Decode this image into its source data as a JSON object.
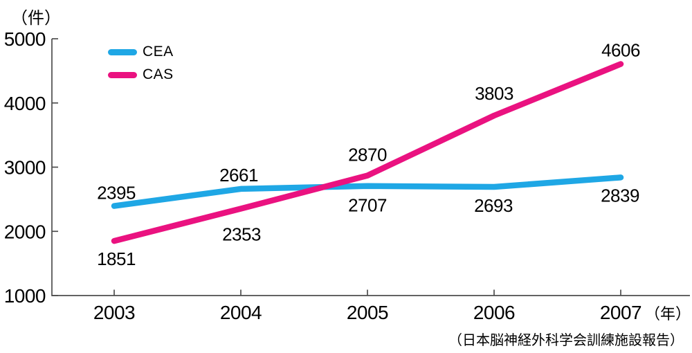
{
  "chart_data": {
    "type": "line",
    "title": "",
    "y_unit_label": "（件）",
    "x_unit_label": "（年）",
    "source_note": "（日本脳神経外科学会訓練施設報告）",
    "categories": [
      "2003",
      "2004",
      "2005",
      "2006",
      "2007"
    ],
    "ylim": [
      1000,
      5000
    ],
    "yticks": [
      1000,
      2000,
      3000,
      4000,
      5000
    ],
    "grid": false,
    "legend_position": "top-left-inside",
    "axis_color": "#4d4d4d",
    "text_color": "#000000",
    "series": [
      {
        "name": "CEA",
        "color": "#1fa7e5",
        "values": [
          2395,
          2661,
          2707,
          2693,
          2839
        ],
        "label_offsets": [
          [
            3,
            -10
          ],
          [
            -3,
            -11
          ],
          [
            0,
            37
          ],
          [
            -1,
            36
          ],
          [
            -1,
            35
          ]
        ]
      },
      {
        "name": "CAS",
        "color": "#ea1280",
        "values": [
          1851,
          2353,
          2870,
          3803,
          4606
        ],
        "label_offsets": [
          [
            3,
            35
          ],
          [
            1,
            46
          ],
          [
            0,
            -21
          ],
          [
            0,
            -23
          ],
          [
            0,
            -11
          ]
        ]
      }
    ]
  }
}
